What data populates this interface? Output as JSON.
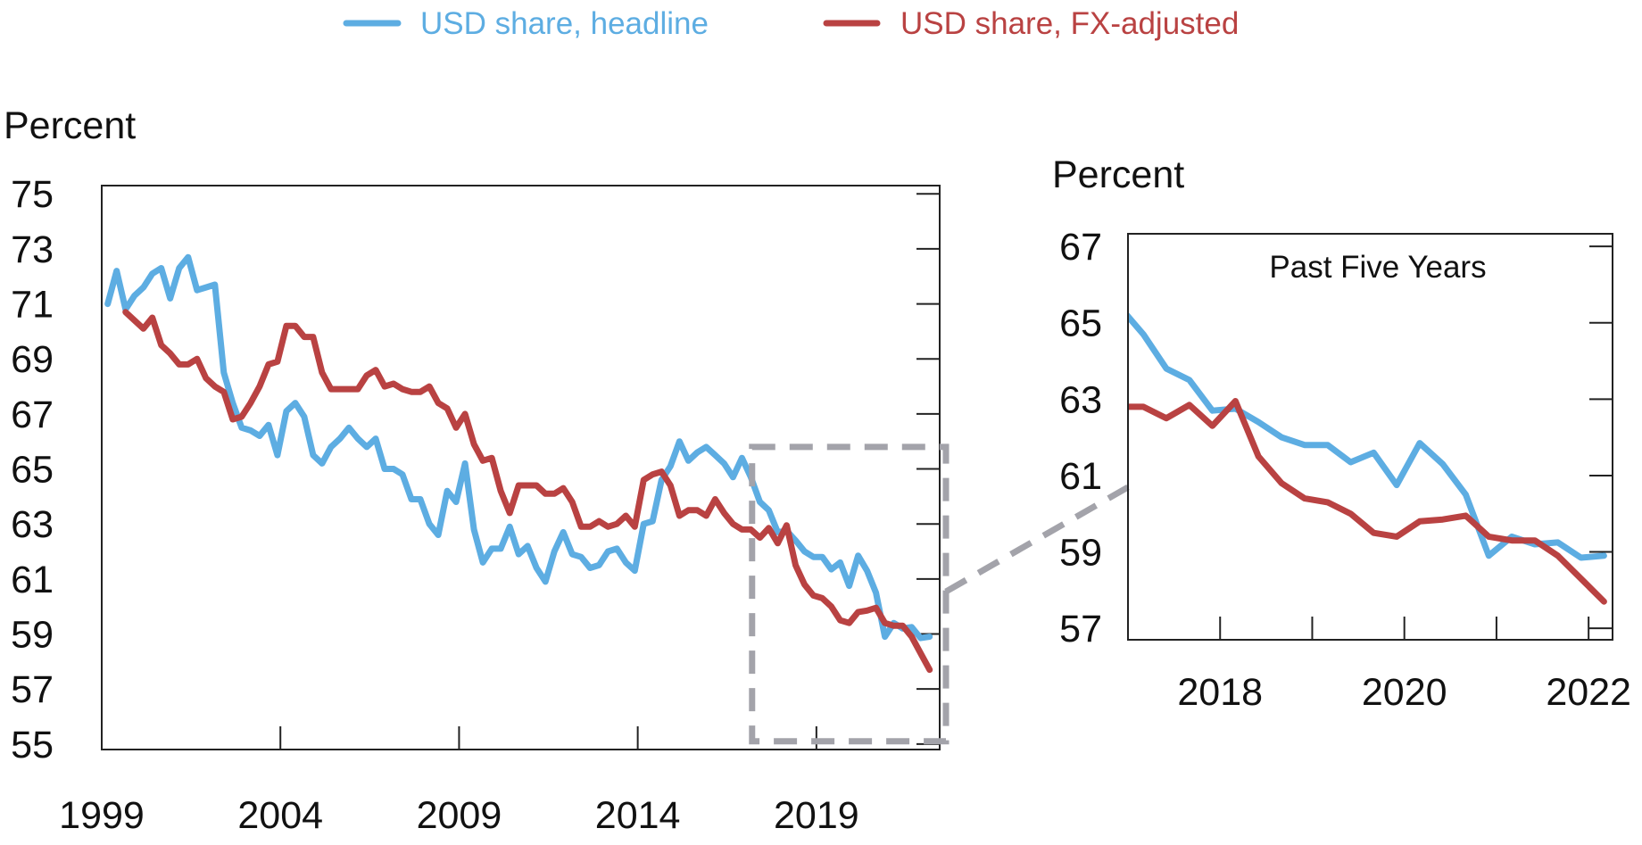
{
  "legend": [
    {
      "name": "USD share, headline",
      "color": "#5dade2"
    },
    {
      "name": "USD share, FX-adjusted",
      "color": "#b94242"
    }
  ],
  "chart_data": [
    {
      "type": "line",
      "panel": "main",
      "ylabel": "Percent",
      "ylim": [
        54.8,
        75.3
      ],
      "yticks": [
        55,
        57,
        59,
        61,
        63,
        65,
        67,
        69,
        71,
        73,
        75
      ],
      "xlim": [
        1999,
        2022.45
      ],
      "xticks": [
        1999,
        2004,
        2009,
        2014,
        2019
      ],
      "grid": false,
      "start_quarter": "1999Q1",
      "frequency": "quarterly",
      "highlight_box": {
        "x": [
          2017.2,
          2022.45
        ],
        "y": [
          55.1,
          65.8
        ],
        "style": "dashed",
        "color": "#a3a3aa"
      },
      "series": [
        {
          "name": "USD share, headline",
          "color": "#5dade2",
          "values": [
            71.0,
            72.2,
            70.8,
            71.3,
            71.6,
            72.1,
            72.3,
            71.2,
            72.3,
            72.7,
            71.5,
            71.6,
            71.7,
            68.5,
            67.4,
            66.5,
            66.4,
            66.2,
            66.6,
            65.5,
            67.1,
            67.4,
            66.9,
            65.5,
            65.2,
            65.8,
            66.1,
            66.5,
            66.1,
            65.8,
            66.1,
            65.0,
            65.0,
            64.8,
            63.9,
            63.9,
            63.0,
            62.6,
            64.2,
            63.8,
            65.2,
            62.8,
            61.6,
            62.1,
            62.1,
            62.9,
            61.9,
            62.2,
            61.4,
            60.9,
            62.0,
            62.7,
            61.9,
            61.8,
            61.4,
            61.5,
            62.0,
            62.1,
            61.6,
            61.3,
            63.0,
            63.1,
            64.6,
            65.1,
            66.0,
            65.3,
            65.6,
            65.8,
            65.5,
            65.2,
            64.7,
            65.4,
            64.7,
            63.8,
            63.5,
            62.7,
            62.75,
            62.4,
            62.0,
            61.8,
            61.8,
            61.35,
            61.6,
            60.75,
            61.85,
            61.3,
            60.5,
            58.9,
            59.4,
            59.2,
            59.25,
            58.85,
            58.9
          ]
        },
        {
          "name": "USD share, FX-adjusted",
          "color": "#b94242",
          "values": [
            null,
            null,
            70.7,
            70.4,
            70.1,
            70.5,
            69.5,
            69.2,
            68.8,
            68.8,
            69.0,
            68.3,
            68.0,
            67.8,
            66.8,
            66.9,
            67.4,
            68.0,
            68.8,
            68.9,
            70.2,
            70.2,
            69.8,
            69.8,
            68.5,
            67.9,
            67.9,
            67.9,
            67.9,
            68.4,
            68.6,
            68.0,
            68.1,
            67.9,
            67.8,
            67.8,
            68.0,
            67.4,
            67.2,
            66.5,
            67.0,
            65.9,
            65.3,
            65.4,
            64.2,
            63.4,
            64.4,
            64.4,
            64.4,
            64.1,
            64.1,
            64.3,
            63.8,
            62.9,
            62.9,
            63.1,
            62.9,
            63.0,
            63.3,
            62.9,
            64.6,
            64.8,
            64.9,
            64.4,
            63.3,
            63.5,
            63.5,
            63.3,
            63.9,
            63.4,
            63.0,
            62.8,
            62.8,
            62.5,
            62.85,
            62.3,
            62.95,
            61.5,
            60.8,
            60.4,
            60.3,
            60.0,
            59.5,
            59.4,
            59.8,
            59.85,
            59.95,
            59.4,
            59.3,
            59.3,
            58.9,
            58.3,
            57.7
          ]
        }
      ]
    },
    {
      "type": "line",
      "panel": "inset",
      "title": "Past Five Years",
      "ylabel": "Percent",
      "ylim": [
        56.7,
        67.33
      ],
      "yticks": [
        57,
        59,
        61,
        63,
        65,
        67
      ],
      "xlim": [
        2017.0,
        2022.26
      ],
      "xticks": [
        2018,
        2019,
        2020,
        2021,
        2022
      ],
      "xticklabels": [
        "2018",
        "",
        "2020",
        "",
        "2022"
      ],
      "grid": false,
      "source": "same series as main panel, zoomed"
    }
  ]
}
